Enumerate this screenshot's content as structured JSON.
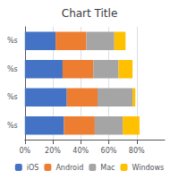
{
  "chart_data": {
    "type": "bar",
    "orientation": "horizontal",
    "stacked": true,
    "title": "Chart Title",
    "categories": [
      "%s",
      "%s",
      "%s",
      "%s"
    ],
    "series": [
      {
        "name": "iOS",
        "color": "#4472C4",
        "values": [
          28,
          30,
          27,
          22
        ]
      },
      {
        "name": "Android",
        "color": "#ED7D31",
        "values": [
          22,
          22,
          22,
          22
        ]
      },
      {
        "name": "Mac",
        "color": "#A5A5A5",
        "values": [
          20,
          25,
          18,
          20
        ]
      },
      {
        "name": "Windows",
        "color": "#FFC000",
        "values": [
          12,
          2,
          10,
          8
        ]
      }
    ],
    "xlim": [
      0,
      100
    ],
    "xticks": [
      {
        "value": 0,
        "label": "0%"
      },
      {
        "value": 20,
        "label": "20%"
      },
      {
        "value": 40,
        "label": "40%"
      },
      {
        "value": 60,
        "label": "60%"
      },
      {
        "value": 80,
        "label": "80%"
      }
    ],
    "grid": true,
    "legend": "bottom"
  }
}
